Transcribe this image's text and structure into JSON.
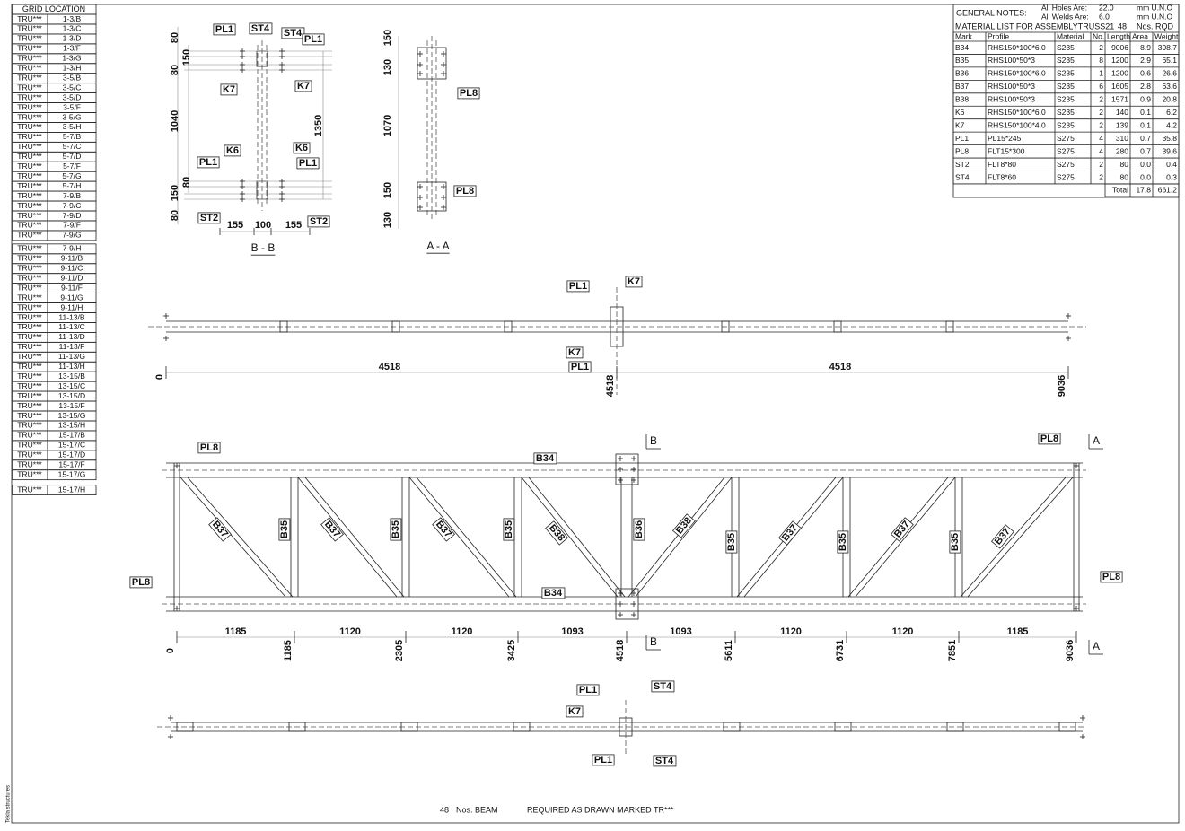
{
  "grid_location": {
    "header": "GRID LOCATION",
    "rows": [
      [
        "TRU***",
        "1-3/B"
      ],
      [
        "TRU***",
        "1-3/C"
      ],
      [
        "TRU***",
        "1-3/D"
      ],
      [
        "TRU***",
        "1-3/F"
      ],
      [
        "TRU***",
        "1-3/G"
      ],
      [
        "TRU***",
        "1-3/H"
      ],
      [
        "TRU***",
        "3-5/B"
      ],
      [
        "TRU***",
        "3-5/C"
      ],
      [
        "TRU***",
        "3-5/D"
      ],
      [
        "TRU***",
        "3-5/F"
      ],
      [
        "TRU***",
        "3-5/G"
      ],
      [
        "TRU***",
        "3-5/H"
      ],
      [
        "TRU***",
        "5-7/B"
      ],
      [
        "TRU***",
        "5-7/C"
      ],
      [
        "TRU***",
        "5-7/D"
      ],
      [
        "TRU***",
        "5-7/F"
      ],
      [
        "TRU***",
        "5-7/G"
      ],
      [
        "TRU***",
        "5-7/H"
      ],
      [
        "TRU***",
        "7-9/B"
      ],
      [
        "TRU***",
        "7-9/C"
      ],
      [
        "TRU***",
        "7-9/D"
      ],
      [
        "TRU***",
        "7-9/F"
      ],
      [
        "TRU***",
        "7-9/G"
      ],
      [
        "TRU***",
        "7-9/H"
      ],
      [
        "TRU***",
        "9-11/B"
      ],
      [
        "TRU***",
        "9-11/C"
      ],
      [
        "TRU***",
        "9-11/D"
      ],
      [
        "TRU***",
        "9-11/F"
      ],
      [
        "TRU***",
        "9-11/G"
      ],
      [
        "TRU***",
        "9-11/H"
      ],
      [
        "TRU***",
        "11-13/B"
      ],
      [
        "TRU***",
        "11-13/C"
      ],
      [
        "TRU***",
        "11-13/D"
      ],
      [
        "TRU***",
        "11-13/F"
      ],
      [
        "TRU***",
        "11-13/G"
      ],
      [
        "TRU***",
        "11-13/H"
      ],
      [
        "TRU***",
        "13-15/B"
      ],
      [
        "TRU***",
        "13-15/C"
      ],
      [
        "TRU***",
        "13-15/D"
      ],
      [
        "TRU***",
        "13-15/F"
      ],
      [
        "TRU***",
        "13-15/G"
      ],
      [
        "TRU***",
        "13-15/H"
      ],
      [
        "TRU***",
        "15-17/B"
      ],
      [
        "TRU***",
        "15-17/C"
      ],
      [
        "TRU***",
        "15-17/D"
      ],
      [
        "TRU***",
        "15-17/F"
      ],
      [
        "TRU***",
        "15-17/G"
      ],
      [
        "TRU***",
        "15-17/H"
      ]
    ]
  },
  "general_notes": {
    "title": "GENERAL NOTES:",
    "holes_label": "All Holes Are:",
    "holes_value": "22.0",
    "holes_unit": "mm U.N.O",
    "welds_label": "All Welds Are:",
    "welds_value": "6.0",
    "welds_unit": "mm U.N.O"
  },
  "material_list": {
    "title": "MATERIAL LIST FOR ASSEMBLYTRUSS21",
    "quantity": "48",
    "quantity_unit": "Nos. RQD",
    "columns": [
      "Mark",
      "Profile",
      "Material",
      "No.",
      "Length",
      "Area",
      "Weight"
    ],
    "rows": [
      [
        "B34",
        "RHS150*100*6.0",
        "S235",
        "2",
        "9006",
        "8.9",
        "398.7"
      ],
      [
        "B35",
        "RHS100*50*3",
        "S235",
        "8",
        "1200",
        "2.9",
        "65.1"
      ],
      [
        "B36",
        "RHS150*100*6.0",
        "S235",
        "1",
        "1200",
        "0.6",
        "26.6"
      ],
      [
        "B37",
        "RHS100*50*3",
        "S235",
        "6",
        "1605",
        "2.8",
        "63.6"
      ],
      [
        "B38",
        "RHS100*50*3",
        "S235",
        "2",
        "1571",
        "0.9",
        "20.8"
      ],
      [
        "K6",
        "RHS150*100*6.0",
        "S235",
        "2",
        "140",
        "0.1",
        "6.2"
      ],
      [
        "K7",
        "RHS150*100*4.0",
        "S235",
        "2",
        "139",
        "0.1",
        "4.2"
      ],
      [
        "PL1",
        "PL15*245",
        "S275",
        "4",
        "310",
        "0.7",
        "35.8"
      ],
      [
        "PL8",
        "FLT15*300",
        "S275",
        "4",
        "280",
        "0.7",
        "39.6"
      ],
      [
        "ST2",
        "FLT8*80",
        "S275",
        "2",
        "80",
        "0.0",
        "0.4"
      ],
      [
        "ST4",
        "FLT8*60",
        "S275",
        "2",
        "80",
        "0.0",
        "0.3"
      ]
    ],
    "total": {
      "label": "Total",
      "area": "17.8",
      "weight": "661.2"
    }
  },
  "section_bb": {
    "caption": "B - B",
    "labels": [
      "PL1",
      "ST4",
      "ST4",
      "PL1",
      "K7",
      "K7",
      "K6",
      "K6",
      "PL1",
      "PL1",
      "ST2",
      "ST2"
    ],
    "dims": [
      "80",
      "150",
      "80",
      "1040",
      "80",
      "150",
      "80",
      "1350",
      "155",
      "100",
      "155"
    ]
  },
  "section_aa": {
    "caption": "A - A",
    "labels": [
      "PL8",
      "PL8"
    ],
    "dims": [
      "150",
      "130",
      "1070",
      "150",
      "130"
    ]
  },
  "top_view": {
    "labels": [
      "PL1",
      "K7",
      "K7",
      "PL1"
    ],
    "dims": [
      "4518",
      "4518"
    ],
    "stations": [
      "0",
      "4518",
      "9036"
    ]
  },
  "elevation": {
    "plate_labels": [
      "PL8",
      "PL8",
      "PL8",
      "PL8"
    ],
    "chord_labels": [
      "B34",
      "B34"
    ],
    "member_labels": [
      "B37",
      "B35",
      "B37",
      "B35",
      "B37",
      "B35",
      "B38",
      "B36",
      "B38",
      "B35",
      "B37",
      "B35",
      "B37",
      "B35",
      "B37"
    ],
    "section_marks": [
      "B",
      "A",
      "B",
      "A"
    ],
    "spacings": [
      "1185",
      "1120",
      "1120",
      "1093",
      "1093",
      "1120",
      "1120",
      "1185"
    ],
    "stations": [
      "0",
      "1185",
      "2305",
      "3425",
      "4518",
      "5611",
      "6731",
      "7851",
      "9036"
    ]
  },
  "bottom_view": {
    "labels": [
      "PL1",
      "ST4",
      "K7",
      "PL1",
      "ST4"
    ]
  },
  "footer": {
    "quantity": "48",
    "unit": "Nos.  BEAM",
    "note": "REQUIRED AS DRAWN MARKED  TR***"
  },
  "software": "Tekla structures"
}
